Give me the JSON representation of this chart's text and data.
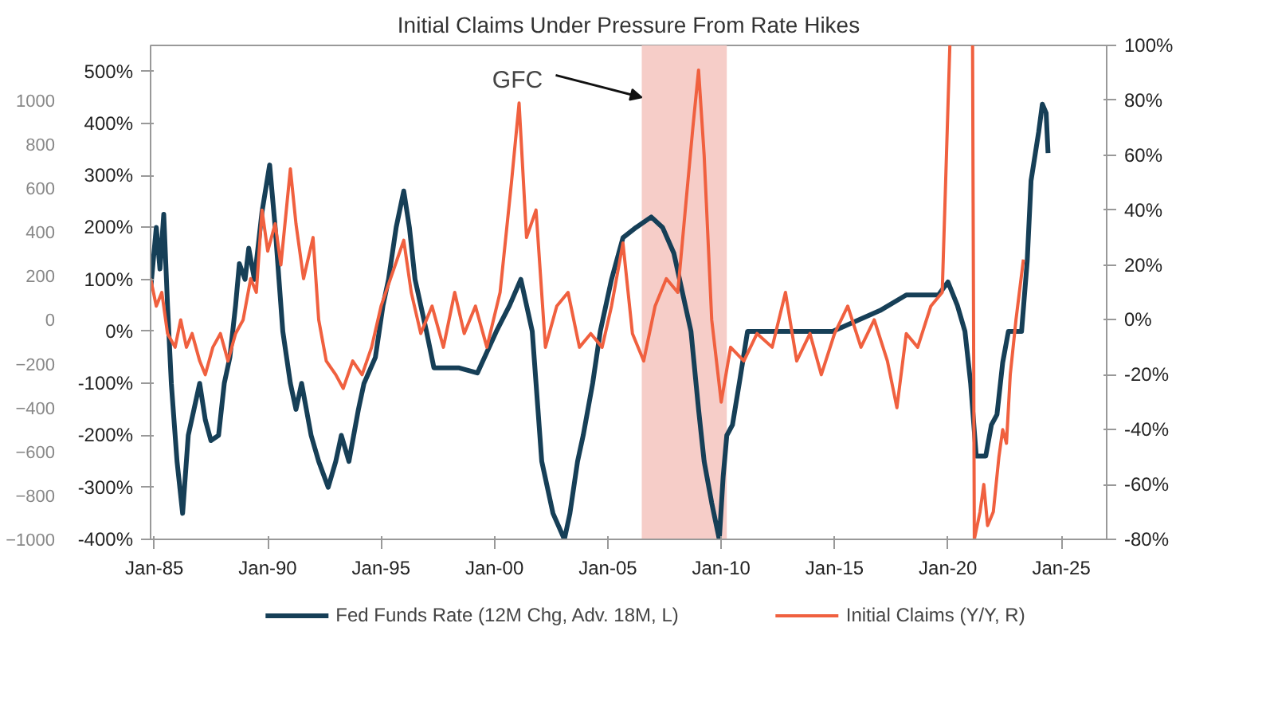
{
  "chart_data": {
    "type": "line",
    "title": "Initial Claims Under Pressure From Rate Hikes",
    "xlim": [
      "1984-11",
      "2027-01"
    ],
    "xticks": [
      {
        "value": "1985-01",
        "label": "Jan-85"
      },
      {
        "value": "1990-01",
        "label": "Jan-90"
      },
      {
        "value": "1995-01",
        "label": "Jan-95"
      },
      {
        "value": "2000-01",
        "label": "Jan-00"
      },
      {
        "value": "2005-01",
        "label": "Jan-05"
      },
      {
        "value": "2010-01",
        "label": "Jan-10"
      },
      {
        "value": "2015-01",
        "label": "Jan-15"
      },
      {
        "value": "2020-01",
        "label": "Jan-20"
      },
      {
        "value": "2025-01",
        "label": "Jan-25"
      }
    ],
    "ylim": [
      -400,
      550
    ],
    "yticks": [
      {
        "value": 500,
        "label": "500%"
      },
      {
        "value": 400,
        "label": "400%"
      },
      {
        "value": 300,
        "label": "300%"
      },
      {
        "value": 200,
        "label": "200%"
      },
      {
        "value": 100,
        "label": "100%"
      },
      {
        "value": 0,
        "label": "0%"
      },
      {
        "value": -100,
        "label": "-100%"
      },
      {
        "value": -200,
        "label": "-200%"
      },
      {
        "value": -300,
        "label": "-300%"
      },
      {
        "value": -400,
        "label": "-400%"
      }
    ],
    "y2lim": [
      -80,
      100
    ],
    "y2ticks": [
      {
        "value": 100,
        "label": "100%"
      },
      {
        "value": 80,
        "label": "80%"
      },
      {
        "value": 60,
        "label": "60%"
      },
      {
        "value": 40,
        "label": "40%"
      },
      {
        "value": 20,
        "label": "20%"
      },
      {
        "value": 0,
        "label": "0%"
      },
      {
        "value": -20,
        "label": "-20%"
      },
      {
        "value": -40,
        "label": "-40%"
      },
      {
        "value": -60,
        "label": "-60%"
      },
      {
        "value": -80,
        "label": "-80%"
      }
    ],
    "y3lim": [
      -1000,
      1250
    ],
    "y3ticks": [
      1000,
      800,
      600,
      400,
      200,
      0,
      -200,
      -400,
      -600,
      -800,
      -1000
    ],
    "grid": false,
    "legend": "bottom",
    "bands": [
      {
        "axis": "x",
        "from": "2006-07",
        "to": "2010-04",
        "color": "#f6cdc8"
      }
    ],
    "annotations": [
      {
        "text": "GFC",
        "x": "2006-07",
        "y": 450
      }
    ],
    "series": [
      {
        "name": "Fed Funds Rate (12M Chg, Adv. 18M, L)",
        "color": "#163f57",
        "x": [
          "1984-11",
          "1985-02",
          "1985-04",
          "1985-06",
          "1985-08",
          "1985-10",
          "1986-01",
          "1986-04",
          "1986-07",
          "1986-10",
          "1987-01",
          "1987-04",
          "1987-07",
          "1987-11",
          "1988-02",
          "1988-05",
          "1988-08",
          "1988-10",
          "1989-01",
          "1989-03",
          "1989-06",
          "1989-10",
          "1990-02",
          "1990-05",
          "1990-07",
          "1990-09",
          "1991-01",
          "1991-04",
          "1991-07",
          "1991-12",
          "1992-04",
          "1992-09",
          "1993-01",
          "1993-04",
          "1993-08",
          "1994-01",
          "1994-04",
          "1994-10",
          "1995-02",
          "1995-05",
          "1995-09",
          "1996-01",
          "1996-04",
          "1996-07",
          "1997-01",
          "1997-05",
          "1998-06",
          "1999-04",
          "2000-02",
          "2000-09",
          "2001-03",
          "2001-09",
          "2002-02",
          "2002-08",
          "2003-02",
          "2003-05",
          "2003-09",
          "2003-12",
          "2004-05",
          "2004-09",
          "2005-03",
          "2005-09",
          "2006-04",
          "2006-12",
          "2007-06",
          "2007-12",
          "2008-06",
          "2008-09",
          "2009-01",
          "2009-04",
          "2009-08",
          "2009-12",
          "2010-02",
          "2010-04",
          "2010-07",
          "2010-11",
          "2011-03",
          "2014-12",
          "2017-01",
          "2018-03",
          "2019-08",
          "2020-01",
          "2020-06",
          "2020-10",
          "2021-01",
          "2021-04",
          "2021-09",
          "2021-12",
          "2022-03",
          "2022-06",
          "2022-09",
          "2023-04",
          "2023-07",
          "2023-09",
          "2024-01",
          "2024-03",
          "2024-05",
          "2024-06"
        ],
        "values": [
          80,
          200,
          120,
          225,
          50,
          -100,
          -250,
          -350,
          -200,
          -150,
          -100,
          -170,
          -210,
          -200,
          -100,
          -50,
          50,
          130,
          100,
          160,
          100,
          230,
          320,
          200,
          100,
          0,
          -100,
          -150,
          -100,
          -200,
          -250,
          -300,
          -250,
          -200,
          -250,
          -150,
          -100,
          -50,
          50,
          100,
          200,
          270,
          200,
          100,
          0,
          -70,
          -70,
          -80,
          0,
          50,
          100,
          0,
          -250,
          -350,
          -400,
          -350,
          -250,
          -200,
          -100,
          0,
          100,
          180,
          200,
          220,
          200,
          150,
          50,
          0,
          -150,
          -250,
          -330,
          -400,
          -280,
          -200,
          -180,
          -90,
          0,
          0,
          40,
          70,
          70,
          95,
          50,
          0,
          -100,
          -240,
          -240,
          -180,
          -160,
          -60,
          0,
          0,
          135,
          290,
          383,
          437,
          420,
          343
        ]
      },
      {
        "name": "Initial Claims (Y/Y, R)",
        "color": "#f0603f",
        "axis": "y2",
        "x": [
          "1984-11",
          "1985-02",
          "1985-05",
          "1985-08",
          "1985-12",
          "1986-03",
          "1986-06",
          "1986-09",
          "1987-01",
          "1987-04",
          "1987-08",
          "1987-12",
          "1988-04",
          "1988-08",
          "1988-12",
          "1989-04",
          "1989-07",
          "1989-10",
          "1990-01",
          "1990-05",
          "1990-08",
          "1991-01",
          "1991-04",
          "1991-08",
          "1992-01",
          "1992-04",
          "1992-08",
          "1993-01",
          "1993-05",
          "1993-10",
          "1994-03",
          "1994-08",
          "1995-01",
          "1995-06",
          "1996-01",
          "1996-05",
          "1996-10",
          "1997-04",
          "1997-10",
          "1998-04",
          "1998-09",
          "1999-03",
          "1999-09",
          "2000-04",
          "2000-10",
          "2001-02",
          "2001-06",
          "2001-11",
          "2002-04",
          "2002-10",
          "2003-04",
          "2003-10",
          "2004-04",
          "2004-10",
          "2005-03",
          "2005-09",
          "2006-02",
          "2006-08",
          "2007-02",
          "2007-08",
          "2008-02",
          "2008-06",
          "2008-10",
          "2009-01",
          "2009-04",
          "2009-08",
          "2010-01",
          "2010-06",
          "2011-01",
          "2011-08",
          "2012-04",
          "2012-11",
          "2013-05",
          "2013-12",
          "2014-06",
          "2015-01",
          "2015-08",
          "2016-03",
          "2016-10",
          "2017-05",
          "2017-10",
          "2018-03",
          "2018-09",
          "2019-04",
          "2019-10",
          "2020-02",
          "2020-06",
          "2021-02",
          "2021-03",
          "2021-06",
          "2021-08",
          "2021-10",
          "2022-01",
          "2022-04",
          "2022-06",
          "2022-08",
          "2022-10",
          "2023-01",
          "2023-05"
        ],
        "values": [
          15,
          5,
          10,
          -5,
          -10,
          0,
          -10,
          -5,
          -15,
          -20,
          -10,
          -5,
          -15,
          -5,
          0,
          15,
          10,
          40,
          25,
          35,
          20,
          55,
          35,
          15,
          30,
          0,
          -15,
          -20,
          -25,
          -15,
          -20,
          -10,
          5,
          15,
          29,
          10,
          -5,
          5,
          -10,
          10,
          -5,
          5,
          -10,
          10,
          50,
          79,
          30,
          40,
          -10,
          5,
          10,
          -10,
          -5,
          -10,
          5,
          28,
          -5,
          -15,
          5,
          15,
          10,
          40,
          70,
          91,
          60,
          0,
          -30,
          -10,
          -15,
          -5,
          -10,
          10,
          -15,
          -5,
          -20,
          -5,
          5,
          -10,
          0,
          -15,
          -32,
          -5,
          -10,
          5,
          10,
          100,
          null,
          100,
          -80,
          -70,
          -60,
          -75,
          -70,
          -50,
          -40,
          -45,
          -20,
          0,
          22
        ]
      }
    ]
  }
}
